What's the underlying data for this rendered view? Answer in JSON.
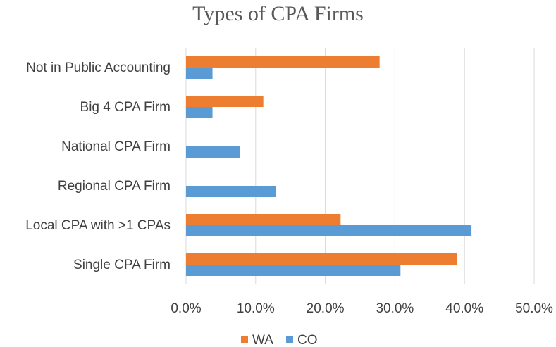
{
  "chart_data": {
    "type": "bar",
    "orientation": "horizontal",
    "title": "Types of CPA Firms",
    "xlabel": "",
    "ylabel": "",
    "categories": [
      "Not in Public Accounting",
      "Big 4 CPA Firm",
      "National CPA Firm",
      "Regional CPA Firm",
      "Local CPA with >1 CPAs",
      "Single CPA Firm"
    ],
    "series": [
      {
        "name": "WA",
        "color": "#ED7D31",
        "values": [
          27.8,
          11.1,
          0,
          0,
          22.2,
          38.9
        ]
      },
      {
        "name": "CO",
        "color": "#5B9BD5",
        "values": [
          3.8,
          3.8,
          7.7,
          12.9,
          41.0,
          30.8
        ]
      }
    ],
    "xlim": [
      0,
      50
    ],
    "xticks": [
      0,
      10,
      20,
      30,
      40,
      50
    ],
    "xtick_labels": [
      "0.0%",
      "10.0%",
      "20.0%",
      "30.0%",
      "40.0%",
      "50.0%"
    ],
    "grid": true,
    "legend_position": "bottom"
  }
}
